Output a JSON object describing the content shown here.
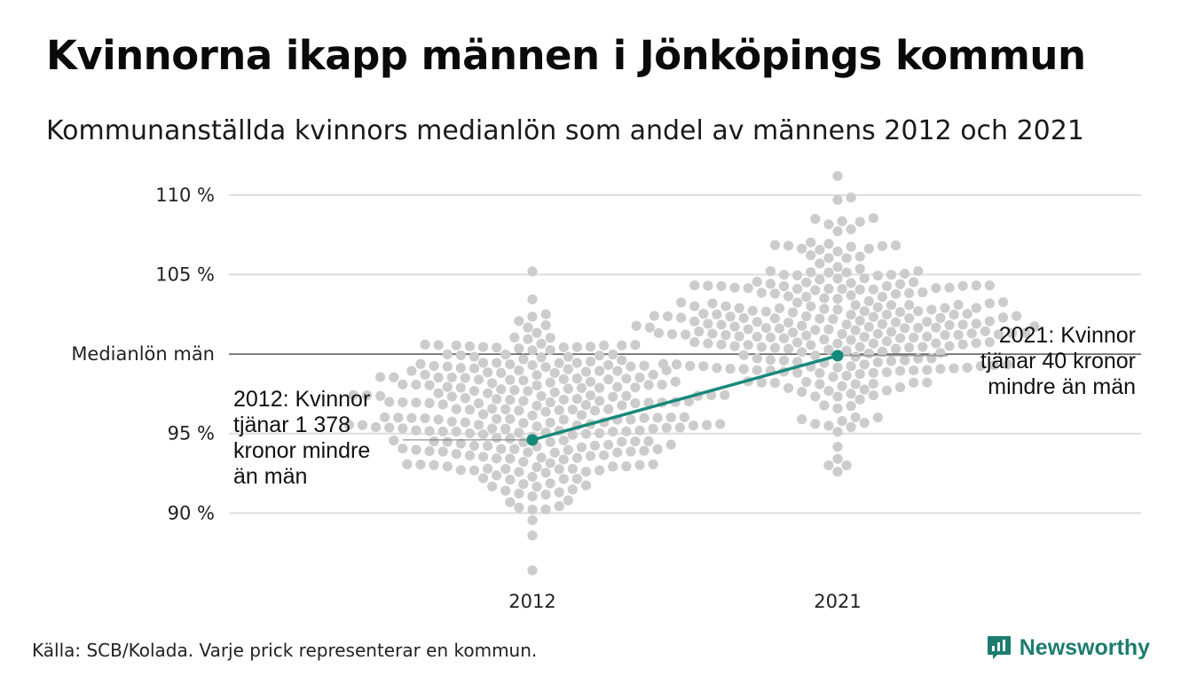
{
  "header": {
    "title": "Kvinnorna ikapp männen i Jönköpings kommun",
    "subtitle": "Kommunanställda kvinnors medianlön som andel av männens 2012 och 2021"
  },
  "footer": {
    "source": "Källa: SCB/Kolada. Varje prick representerar en kommun.",
    "brand": "Newsworthy",
    "brand_icon": "chart-bubble-icon"
  },
  "colors": {
    "dots": "#cccccc",
    "highlight": "#17897b",
    "grid": "#dddddd",
    "reference": "#333333",
    "brand": "#1c7d6e"
  },
  "chart_data": {
    "type": "scatter",
    "subtype": "beeswarm",
    "categories": [
      "2012",
      "2021"
    ],
    "y_ticks": [
      {
        "value": 90,
        "label": "90 %"
      },
      {
        "value": 95,
        "label": "95 %"
      },
      {
        "value": 100,
        "label": "Medianlön män"
      },
      {
        "value": 105,
        "label": "105 %"
      },
      {
        "value": 110,
        "label": "110 %"
      }
    ],
    "ylim": [
      86,
      111.5
    ],
    "grid": true,
    "reference_line": {
      "value": 100,
      "label": "Medianlön män"
    },
    "distributions": [
      {
        "category": "2012",
        "count": 290,
        "min": 86.4,
        "max": 105.2,
        "center": 96.2,
        "spread": 2.9
      },
      {
        "category": "2021",
        "count": 290,
        "min": 92.6,
        "max": 111.2,
        "center": 101.8,
        "spread": 2.9
      }
    ],
    "highlight": {
      "name": "Jönköping",
      "values": [
        {
          "x": "2012",
          "y": 94.6
        },
        {
          "x": "2021",
          "y": 99.9
        }
      ]
    },
    "annotations": [
      {
        "x": "2012",
        "lines": [
          "2012: Kvinnor",
          "tjänar 1 378",
          "kronor mindre",
          "än män"
        ]
      },
      {
        "x": "2021",
        "lines": [
          "2021: Kvinnor",
          "tjänar 40 kronor",
          "mindre än män"
        ]
      }
    ]
  }
}
